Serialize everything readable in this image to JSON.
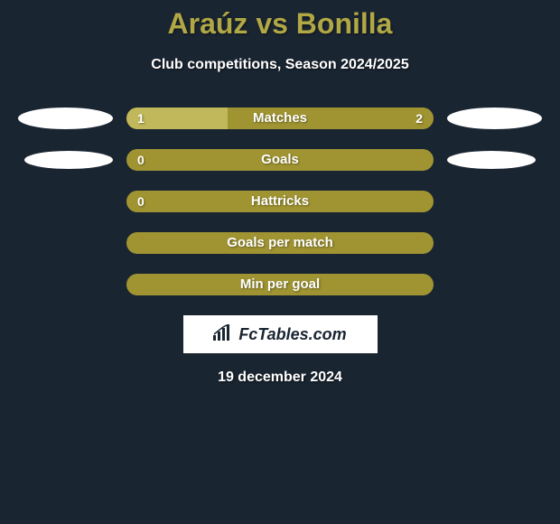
{
  "title": "Araúz vs Bonilla",
  "subtitle": "Club competitions, Season 2024/2025",
  "date": "19 december 2024",
  "logo": "FcTables.com",
  "colors": {
    "background": "#1a2532",
    "title": "#b0a845",
    "bar_bg": "#a09432",
    "bar_fill": "#c0b85a",
    "ellipse": "#ffffff",
    "text": "#ffffff"
  },
  "typography": {
    "title_fontsize": 32,
    "subtitle_fontsize": 16,
    "bar_label_fontsize": 15,
    "value_fontsize": 14,
    "date_fontsize": 16
  },
  "stats": [
    {
      "label": "Matches",
      "left_val": "1",
      "right_val": "2",
      "fill_pct": 33,
      "show_left_ellipse": true,
      "show_right_ellipse": true,
      "ellipse_size": "large"
    },
    {
      "label": "Goals",
      "left_val": "0",
      "right_val": "",
      "fill_pct": 0,
      "show_left_ellipse": true,
      "show_right_ellipse": true,
      "ellipse_size": "small"
    },
    {
      "label": "Hattricks",
      "left_val": "0",
      "right_val": "",
      "fill_pct": 0,
      "show_left_ellipse": false,
      "show_right_ellipse": false,
      "ellipse_size": "small"
    },
    {
      "label": "Goals per match",
      "left_val": "",
      "right_val": "",
      "fill_pct": 0,
      "show_left_ellipse": false,
      "show_right_ellipse": false,
      "ellipse_size": "small"
    },
    {
      "label": "Min per goal",
      "left_val": "",
      "right_val": "",
      "fill_pct": 0,
      "show_left_ellipse": false,
      "show_right_ellipse": false,
      "ellipse_size": "small"
    }
  ]
}
